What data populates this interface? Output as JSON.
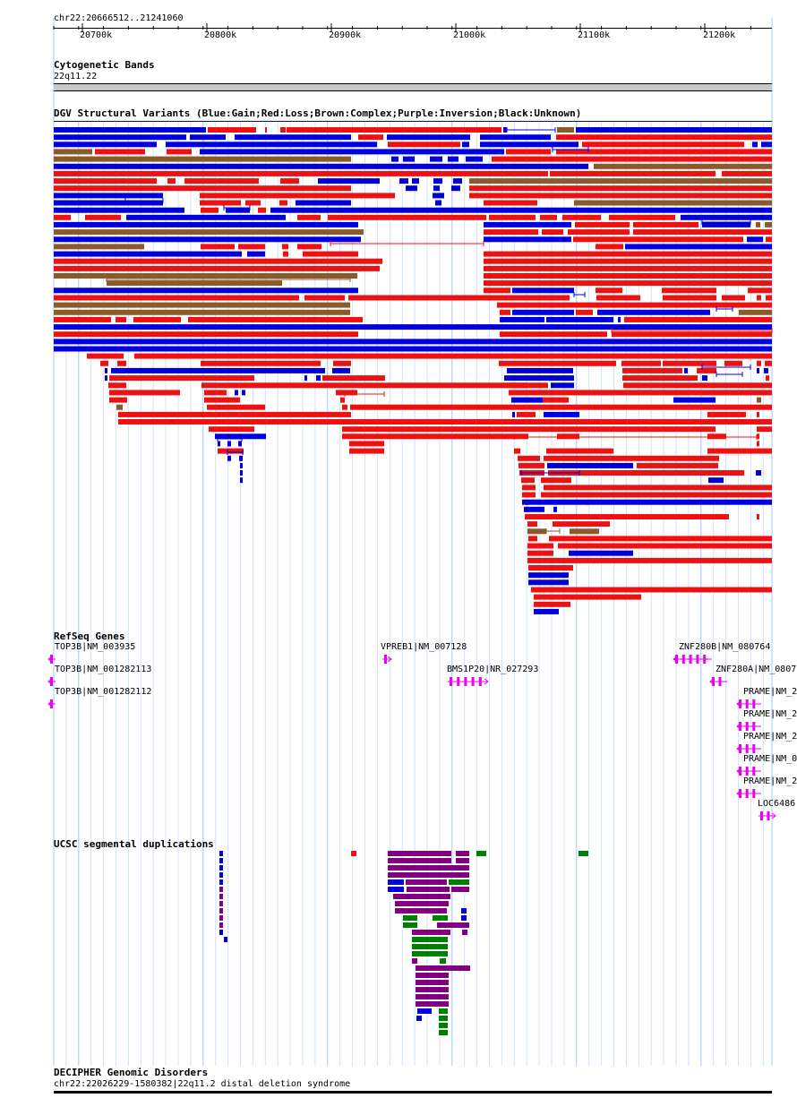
{
  "ruler": {
    "region": "chr22:20666512..21241060",
    "ticks": [
      "20700k",
      "20800k",
      "20900k",
      "21000k",
      "21100k",
      "21200k"
    ]
  },
  "cytoband": {
    "title": "Cytogenetic Bands",
    "band": "22q11.22"
  },
  "dgv": {
    "title": "DGV Structural Variants (Blue:Gain;Red:Loss;Brown:Complex;Purple:Inversion;Black:Unknown)",
    "colors": {
      "gain": "#0000dd",
      "loss": "#ee1111",
      "complex": "#8b5a2b",
      "inversion": "#800080",
      "unknown": "#000000"
    }
  },
  "refseq": {
    "title": "RefSeq Genes",
    "gene_color": "#ee00ee",
    "genes": [
      {
        "label": "TOP3B|NM_003935"
      },
      {
        "label": "TOP3B|NM_001282113"
      },
      {
        "label": "TOP3B|NM_001282112"
      },
      {
        "label": "VPREB1|NM_007128"
      },
      {
        "label": "BMS1P20|NR_027293"
      },
      {
        "label": "ZNF280B|NM_080764"
      },
      {
        "label": "ZNF280A|NM_0807"
      },
      {
        "label": "PRAME|NM_2"
      },
      {
        "label": "PRAME|NM_2"
      },
      {
        "label": "PRAME|NM_2"
      },
      {
        "label": "PRAME|NM_0"
      },
      {
        "label": "PRAME|NM_2"
      },
      {
        "label": "LOC6486"
      }
    ]
  },
  "segdup": {
    "title": "UCSC segmental duplications",
    "colors": {
      "blue": "#0000dd",
      "purple": "#800080",
      "green": "#008000",
      "red": "#ee1111"
    }
  },
  "decipher": {
    "title": "DECIPHER Genomic Disorders",
    "item": "chr22:22026229-1580382|22q11.2 distal deletion syndrome"
  }
}
